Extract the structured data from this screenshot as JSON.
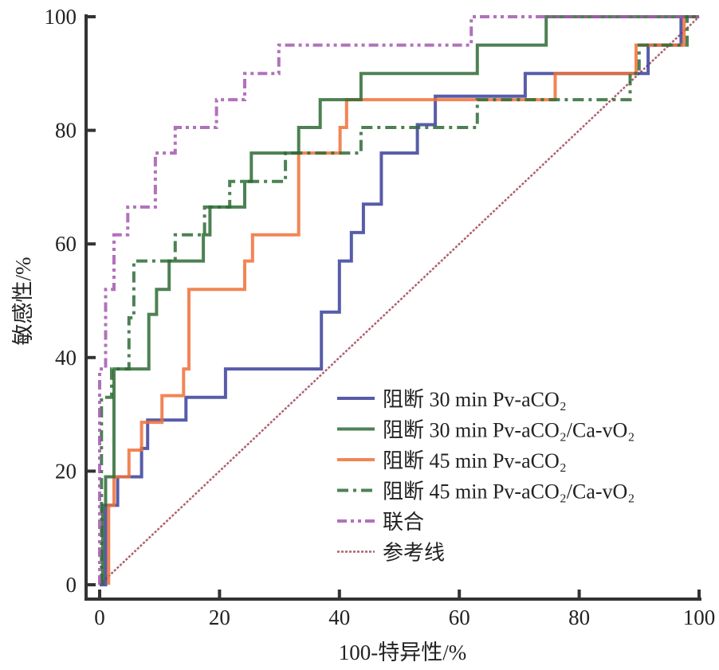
{
  "chart_data": {
    "type": "line",
    "title": "",
    "xlabel": "100-特异性/%",
    "ylabel": "敏感性/%",
    "xlim": [
      0,
      100
    ],
    "ylim": [
      0,
      100
    ],
    "xticks": [
      "0",
      "20",
      "40",
      "60",
      "80",
      "100"
    ],
    "yticks": [
      "0",
      "20",
      "40",
      "60",
      "80",
      "100"
    ],
    "grid": false,
    "legend_position": "bottom-right",
    "series": [
      {
        "name": "阻断 30 min Pv-aCO₂",
        "color": "#3a3f9a",
        "style": "solid",
        "points": [
          [
            0,
            0
          ],
          [
            1,
            0
          ],
          [
            1,
            14
          ],
          [
            3,
            14
          ],
          [
            3,
            19
          ],
          [
            7,
            19
          ],
          [
            7,
            24
          ],
          [
            8,
            24
          ],
          [
            8,
            29
          ],
          [
            14.4,
            29
          ],
          [
            14.4,
            33
          ],
          [
            21,
            33
          ],
          [
            21,
            38
          ],
          [
            37,
            38
          ],
          [
            37,
            48
          ],
          [
            40,
            48
          ],
          [
            40,
            57
          ],
          [
            42,
            57
          ],
          [
            42,
            62
          ],
          [
            44,
            62
          ],
          [
            44,
            67
          ],
          [
            47,
            67
          ],
          [
            47,
            76
          ],
          [
            53,
            76
          ],
          [
            53,
            81
          ],
          [
            56,
            81
          ],
          [
            56,
            86
          ],
          [
            71,
            86
          ],
          [
            71,
            90
          ],
          [
            91.5,
            90
          ],
          [
            91.5,
            95
          ],
          [
            97,
            95
          ],
          [
            97,
            100
          ],
          [
            100,
            100
          ]
        ]
      },
      {
        "name": "阻断 30 min Pv-aCO₂/Ca-vO₂",
        "color": "#2e6b35",
        "style": "solid",
        "points": [
          [
            0.5,
            0
          ],
          [
            0.5,
            14
          ],
          [
            1,
            14
          ],
          [
            1,
            19
          ],
          [
            2.4,
            19
          ],
          [
            2.4,
            38
          ],
          [
            8.2,
            38
          ],
          [
            8.2,
            47.6
          ],
          [
            9.5,
            47.6
          ],
          [
            9.5,
            52
          ],
          [
            11.6,
            52
          ],
          [
            11.6,
            57
          ],
          [
            17.3,
            57
          ],
          [
            17.3,
            61.6
          ],
          [
            18.4,
            61.6
          ],
          [
            18.4,
            66.5
          ],
          [
            24.2,
            66.5
          ],
          [
            24.2,
            71
          ],
          [
            25.3,
            71
          ],
          [
            25.3,
            76
          ],
          [
            33.2,
            76
          ],
          [
            33.2,
            80.5
          ],
          [
            36.8,
            80.5
          ],
          [
            36.8,
            85.4
          ],
          [
            43.6,
            85.4
          ],
          [
            43.6,
            90
          ],
          [
            63,
            90
          ],
          [
            63,
            95
          ],
          [
            74.5,
            95
          ],
          [
            74.5,
            100
          ],
          [
            100,
            100
          ]
        ]
      },
      {
        "name": "阻断 45 min Pv-aCO₂",
        "color": "#f07038",
        "style": "solid",
        "points": [
          [
            1.5,
            0
          ],
          [
            1.5,
            14
          ],
          [
            2.4,
            14
          ],
          [
            2.4,
            19
          ],
          [
            4.9,
            19
          ],
          [
            4.9,
            23.7
          ],
          [
            7,
            23.7
          ],
          [
            7,
            28.6
          ],
          [
            10.4,
            28.6
          ],
          [
            10.4,
            33.3
          ],
          [
            14,
            33.3
          ],
          [
            14,
            38
          ],
          [
            14.9,
            38
          ],
          [
            14.9,
            52
          ],
          [
            24.2,
            52
          ],
          [
            24.2,
            57
          ],
          [
            25.5,
            57
          ],
          [
            25.5,
            61.6
          ],
          [
            33.2,
            61.6
          ],
          [
            33.2,
            76
          ],
          [
            40.1,
            76
          ],
          [
            40.1,
            80.5
          ],
          [
            41.2,
            80.5
          ],
          [
            41.2,
            85.4
          ],
          [
            76,
            85.4
          ],
          [
            76,
            90
          ],
          [
            89.5,
            90
          ],
          [
            89.5,
            95
          ],
          [
            97.5,
            95
          ],
          [
            97.5,
            100
          ],
          [
            100,
            100
          ]
        ]
      },
      {
        "name": "阻断 45 min Pv-aCO₂/Ca-vO₂",
        "color": "#2e6b35",
        "style": "dashdot",
        "points": [
          [
            0.3,
            0
          ],
          [
            0.3,
            33
          ],
          [
            2,
            33
          ],
          [
            2,
            38
          ],
          [
            4.9,
            38
          ],
          [
            4.9,
            47
          ],
          [
            5.7,
            47
          ],
          [
            5.7,
            57
          ],
          [
            12.6,
            57
          ],
          [
            12.6,
            61.6
          ],
          [
            17.5,
            61.6
          ],
          [
            17.5,
            66.5
          ],
          [
            21.7,
            66.5
          ],
          [
            21.7,
            71
          ],
          [
            31,
            71
          ],
          [
            31,
            76
          ],
          [
            43.6,
            76
          ],
          [
            43.6,
            80.5
          ],
          [
            63,
            80.5
          ],
          [
            63,
            85.4
          ],
          [
            88.5,
            85.4
          ],
          [
            88.5,
            90
          ],
          [
            90,
            90
          ],
          [
            90,
            95
          ],
          [
            98,
            95
          ],
          [
            98,
            100
          ],
          [
            100,
            100
          ]
        ]
      },
      {
        "name": "联合",
        "color": "#a558b0",
        "style": "dashdotdot",
        "points": [
          [
            0,
            0
          ],
          [
            0,
            38
          ],
          [
            1,
            38
          ],
          [
            1,
            52
          ],
          [
            2.4,
            52
          ],
          [
            2.4,
            61.6
          ],
          [
            4.7,
            61.6
          ],
          [
            4.7,
            66.5
          ],
          [
            9.3,
            66.5
          ],
          [
            9.3,
            76
          ],
          [
            12.6,
            76
          ],
          [
            12.6,
            80.5
          ],
          [
            19.5,
            80.5
          ],
          [
            19.5,
            85.4
          ],
          [
            24.2,
            85.4
          ],
          [
            24.2,
            90
          ],
          [
            29.9,
            90
          ],
          [
            29.9,
            95
          ],
          [
            62,
            95
          ],
          [
            62,
            100
          ],
          [
            100,
            100
          ]
        ]
      },
      {
        "name": "参考线",
        "color": "#9a3a48",
        "style": "reference",
        "points": [
          [
            0,
            0
          ],
          [
            100,
            100
          ]
        ]
      }
    ]
  }
}
